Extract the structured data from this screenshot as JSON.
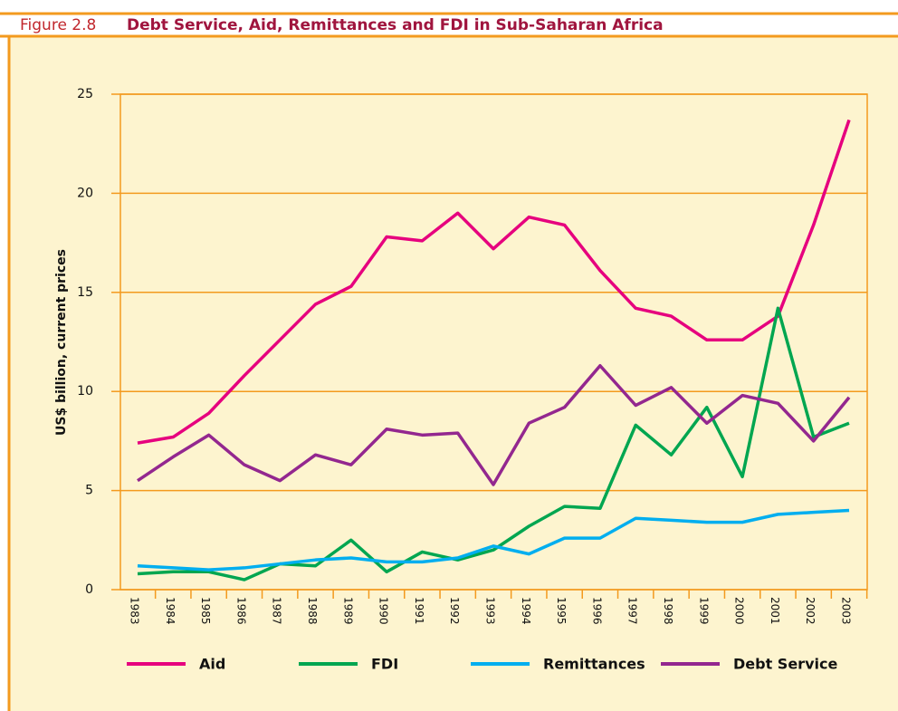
{
  "chart_data": {
    "type": "line",
    "figure_label": "Figure 2.8",
    "title": "Debt Service, Aid, Remittances and FDI in Sub-Saharan Africa",
    "y_label": "US$ billion, current prices",
    "categories": [
      "1983",
      "1984",
      "1985",
      "1986",
      "1987",
      "1988",
      "1989",
      "1990",
      "1991",
      "1992",
      "1993",
      "1994",
      "1995",
      "1996",
      "1997",
      "1998",
      "1999",
      "2000",
      "2001",
      "2002",
      "2003"
    ],
    "series": [
      {
        "name": "Aid",
        "color": "#e6007e",
        "values": [
          7.4,
          7.7,
          8.9,
          10.8,
          12.6,
          14.4,
          15.3,
          17.8,
          17.6,
          19.0,
          17.2,
          18.8,
          18.4,
          16.1,
          14.2,
          13.8,
          12.6,
          12.6,
          13.8,
          18.4,
          23.7
        ]
      },
      {
        "name": "FDI",
        "color": "#00a650",
        "values": [
          0.8,
          0.9,
          0.9,
          0.5,
          1.3,
          1.2,
          2.5,
          0.9,
          1.9,
          1.5,
          2.0,
          3.2,
          4.2,
          4.1,
          8.3,
          6.8,
          9.2,
          5.7,
          14.2,
          7.7,
          8.4
        ]
      },
      {
        "name": "Remittances",
        "color": "#00aeef",
        "values": [
          1.2,
          1.1,
          1.0,
          1.1,
          1.3,
          1.5,
          1.6,
          1.4,
          1.4,
          1.6,
          2.2,
          1.8,
          2.6,
          2.6,
          3.6,
          3.5,
          3.4,
          3.4,
          3.8,
          3.9,
          4.0
        ]
      },
      {
        "name": "Debt Service",
        "color": "#93278f",
        "values": [
          5.5,
          6.7,
          7.8,
          6.3,
          5.5,
          6.8,
          6.3,
          8.1,
          7.8,
          7.9,
          5.3,
          8.4,
          9.2,
          11.3,
          9.3,
          10.2,
          8.4,
          9.8,
          9.4,
          7.5,
          9.7
        ]
      }
    ],
    "ylim": [
      0,
      25
    ],
    "yticks": [
      0,
      5,
      10,
      15,
      20,
      25
    ],
    "grid": true,
    "legend": "bottom"
  }
}
